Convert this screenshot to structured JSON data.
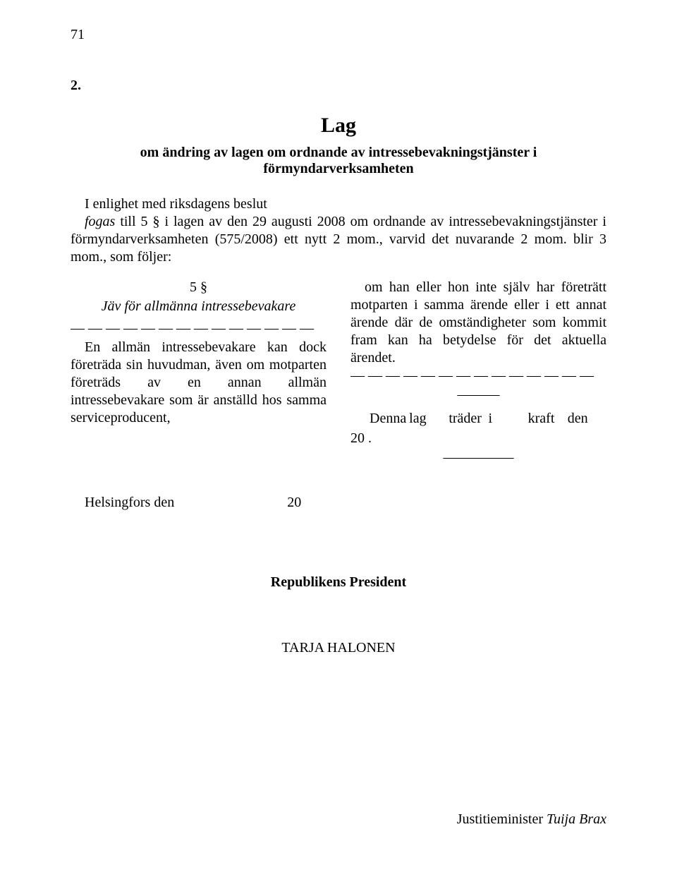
{
  "page_number": "71",
  "doc_number": "2.",
  "title": "Lag",
  "subtitle": "om ändring av lagen om ordnande av intressebevakningstjänster i förmyndarverksamheten",
  "preamble": {
    "line1": "I enlighet med riksdagens beslut",
    "line2_prefix": "fogas",
    "line2_rest": " till 5 § i lagen av den 29 augusti 2008 om ordnande av intressebevakningstjänster i förmyndarverksamheten (575/2008) ett nytt 2 mom., varvid det nuvarande 2 mom. blir 3 mom., som följer:"
  },
  "left": {
    "section_number": "5 §",
    "section_heading": "Jäv för allmänna intressebevakare",
    "dashes": "— — — — — — — — — — — — — —",
    "para": "En allmän intressebevakare kan dock företräda sin huvudman, även om motparten företräds av en annan allmän intressebevakare som är anställd hos samma serviceproducent,"
  },
  "right": {
    "para": "om han eller hon inte själv har företrätt motparten i samma ärende eller i ett annat ärende där de omständigheter som kommit fram kan ha betydelse för det aktuella ärendet.",
    "dashes": "— — — — — — — — — — — — — —",
    "rule": "———",
    "entry_words": [
      "Denna",
      "lag",
      "träder",
      "i",
      "kraft",
      "den"
    ],
    "entry_line2": "20  .",
    "bottom_rule": "—————"
  },
  "helsingfors_label": "Helsingfors den",
  "helsingfors_year": "20",
  "president_label": "Republikens President",
  "president_name": "TARJA HALONEN",
  "minister_prefix": "Justitieminister ",
  "minister_name": "Tuija Brax"
}
